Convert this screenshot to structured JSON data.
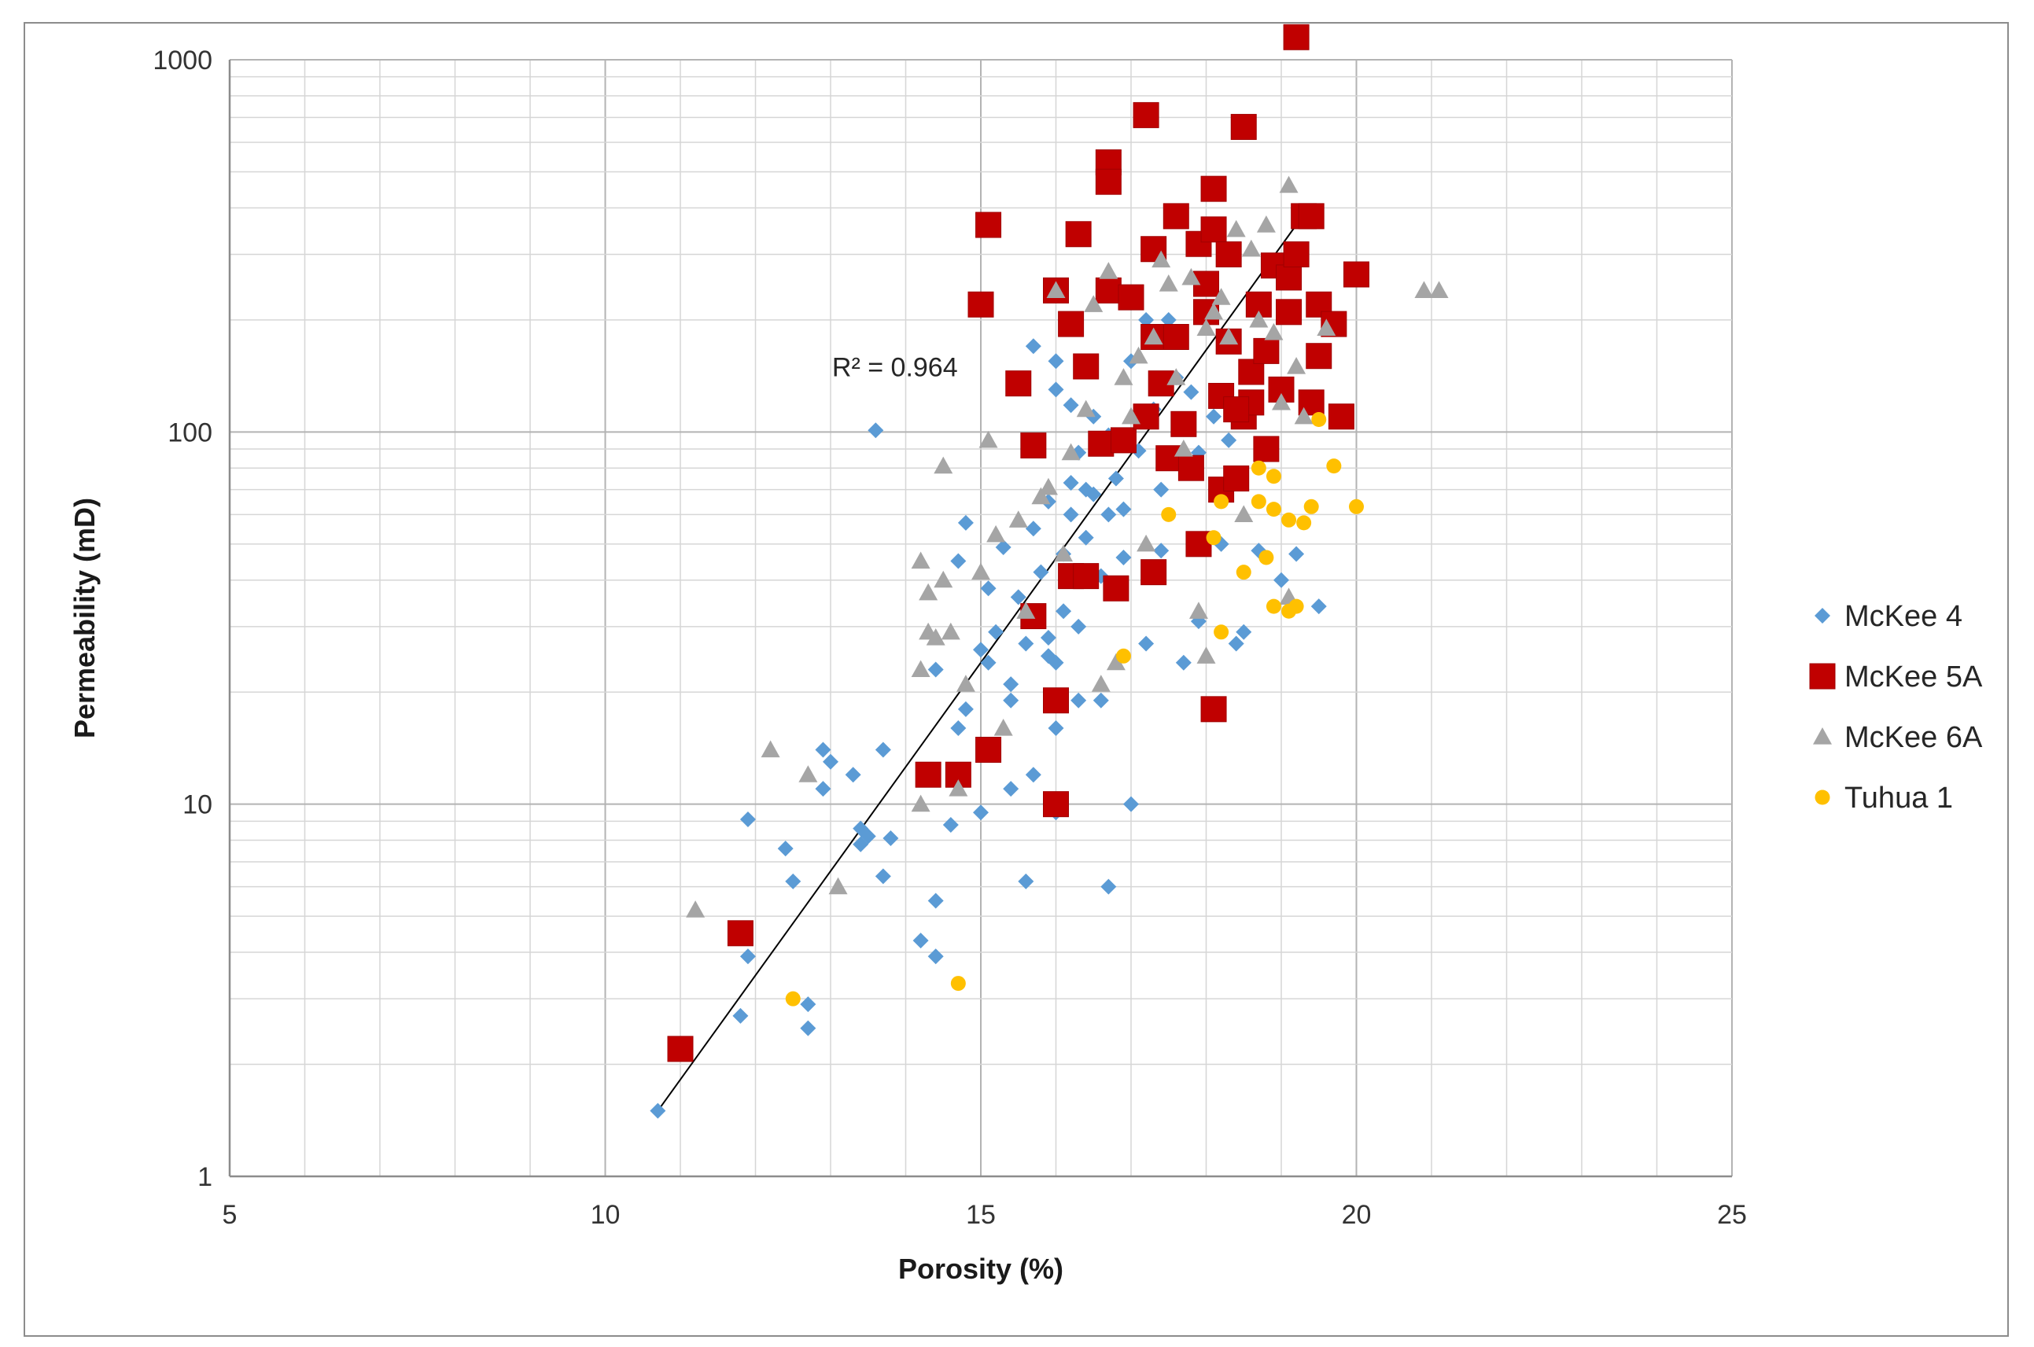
{
  "chart_data": {
    "type": "scatter",
    "xlabel": "Porosity (%)",
    "ylabel": "Permeability (mD)",
    "xlim": [
      5,
      25
    ],
    "ylim": [
      1,
      1000
    ],
    "yscale": "log",
    "x_ticks": [
      "5",
      "10",
      "15",
      "20",
      "25"
    ],
    "y_ticks": [
      "1",
      "10",
      "100",
      "1000"
    ],
    "grid": true,
    "legend_position": "right",
    "annotation": "R² = 0.964",
    "trendline": {
      "x": [
        10.7,
        19.2
      ],
      "y": [
        1.5,
        360
      ]
    },
    "series": [
      {
        "name": "McKee 4",
        "marker": "diamond",
        "color": "#5B9BD5",
        "points": [
          [
            10.7,
            1.5
          ],
          [
            11.9,
            3.9
          ],
          [
            11.8,
            2.7
          ],
          [
            12.7,
            2.9
          ],
          [
            12.7,
            2.5
          ],
          [
            11.9,
            9.1
          ],
          [
            12.4,
            7.6
          ],
          [
            12.5,
            6.2
          ],
          [
            12.9,
            14
          ],
          [
            12.9,
            11
          ],
          [
            13.0,
            13
          ],
          [
            13.3,
            12
          ],
          [
            13.4,
            8.6
          ],
          [
            13.4,
            7.8
          ],
          [
            13.5,
            8.2
          ],
          [
            13.6,
            101
          ],
          [
            13.7,
            14
          ],
          [
            13.7,
            6.4
          ],
          [
            13.8,
            8.1
          ],
          [
            14.2,
            4.3
          ],
          [
            14.4,
            3.9
          ],
          [
            14.4,
            5.5
          ],
          [
            14.4,
            23
          ],
          [
            14.6,
            8.8
          ],
          [
            14.7,
            16
          ],
          [
            14.7,
            45
          ],
          [
            14.8,
            18
          ],
          [
            14.8,
            57
          ],
          [
            15.0,
            26
          ],
          [
            15.0,
            9.5
          ],
          [
            15.1,
            24
          ],
          [
            15.1,
            38
          ],
          [
            15.2,
            29
          ],
          [
            15.3,
            49
          ],
          [
            15.4,
            21
          ],
          [
            15.4,
            19
          ],
          [
            15.4,
            11
          ],
          [
            15.5,
            36
          ],
          [
            15.6,
            27
          ],
          [
            15.6,
            6.2
          ],
          [
            15.7,
            12
          ],
          [
            15.7,
            55
          ],
          [
            15.7,
            170
          ],
          [
            15.8,
            42
          ],
          [
            15.9,
            28
          ],
          [
            15.9,
            65
          ],
          [
            16.0,
            130
          ],
          [
            16.0,
            155
          ],
          [
            16.0,
            24
          ],
          [
            16.0,
            16
          ],
          [
            16.0,
            9.5
          ],
          [
            16.1,
            47
          ],
          [
            16.1,
            33
          ],
          [
            16.2,
            60
          ],
          [
            16.2,
            73
          ],
          [
            16.2,
            118
          ],
          [
            16.3,
            19
          ],
          [
            16.3,
            30
          ],
          [
            16.3,
            88
          ],
          [
            16.4,
            52
          ],
          [
            16.5,
            110
          ],
          [
            16.5,
            68
          ],
          [
            16.6,
            41
          ],
          [
            16.6,
            19
          ],
          [
            16.7,
            6
          ],
          [
            16.7,
            60
          ],
          [
            16.7,
            98
          ],
          [
            16.8,
            75
          ],
          [
            16.9,
            46
          ],
          [
            16.9,
            62
          ],
          [
            17.0,
            10
          ],
          [
            17.0,
            155
          ],
          [
            17.1,
            89
          ],
          [
            17.2,
            27
          ],
          [
            17.2,
            200
          ],
          [
            17.3,
            115
          ],
          [
            17.4,
            70
          ],
          [
            17.4,
            48
          ],
          [
            17.5,
            200
          ],
          [
            17.6,
            140
          ],
          [
            17.7,
            24
          ],
          [
            17.8,
            128
          ],
          [
            17.9,
            31
          ],
          [
            17.9,
            88
          ],
          [
            18.1,
            110
          ],
          [
            18.2,
            50
          ],
          [
            18.3,
            95
          ],
          [
            18.4,
            27
          ],
          [
            18.5,
            29
          ],
          [
            18.7,
            48
          ],
          [
            19.0,
            40
          ],
          [
            19.2,
            47
          ],
          [
            19.5,
            34
          ],
          [
            16.8,
            38
          ],
          [
            15.9,
            25
          ],
          [
            16.4,
            70
          ]
        ]
      },
      {
        "name": "McKee 5A",
        "marker": "square",
        "color": "#C00000",
        "points": [
          [
            11.0,
            2.2
          ],
          [
            11.8,
            4.5
          ],
          [
            14.3,
            12
          ],
          [
            14.7,
            12
          ],
          [
            15.1,
            14
          ],
          [
            15.0,
            220
          ],
          [
            15.1,
            360
          ],
          [
            15.5,
            135
          ],
          [
            15.7,
            92
          ],
          [
            15.7,
            32
          ],
          [
            16.0,
            19
          ],
          [
            16.0,
            10
          ],
          [
            16.0,
            240
          ],
          [
            16.2,
            41
          ],
          [
            16.2,
            195
          ],
          [
            16.3,
            340
          ],
          [
            16.4,
            150
          ],
          [
            16.4,
            41
          ],
          [
            16.6,
            93
          ],
          [
            16.7,
            530
          ],
          [
            16.7,
            470
          ],
          [
            16.7,
            240
          ],
          [
            16.8,
            38
          ],
          [
            16.9,
            95
          ],
          [
            17.0,
            230
          ],
          [
            17.2,
            710
          ],
          [
            17.2,
            110
          ],
          [
            17.3,
            180
          ],
          [
            17.3,
            310
          ],
          [
            17.3,
            42
          ],
          [
            17.4,
            135
          ],
          [
            17.5,
            85
          ],
          [
            17.6,
            380
          ],
          [
            17.6,
            180
          ],
          [
            17.7,
            105
          ],
          [
            17.8,
            80
          ],
          [
            17.9,
            320
          ],
          [
            17.9,
            50
          ],
          [
            18.0,
            250
          ],
          [
            18.0,
            210
          ],
          [
            18.1,
            450
          ],
          [
            18.1,
            350
          ],
          [
            18.1,
            18
          ],
          [
            18.2,
            125
          ],
          [
            18.2,
            70
          ],
          [
            18.3,
            300
          ],
          [
            18.3,
            175
          ],
          [
            18.4,
            75
          ],
          [
            18.5,
            660
          ],
          [
            18.5,
            110
          ],
          [
            18.6,
            145
          ],
          [
            18.7,
            220
          ],
          [
            18.8,
            165
          ],
          [
            18.8,
            90
          ],
          [
            18.9,
            280
          ],
          [
            19.0,
            130
          ],
          [
            19.1,
            260
          ],
          [
            19.1,
            210
          ],
          [
            19.2,
            1150
          ],
          [
            19.2,
            300
          ],
          [
            19.3,
            380
          ],
          [
            19.4,
            380
          ],
          [
            19.4,
            120
          ],
          [
            19.5,
            220
          ],
          [
            19.5,
            160
          ],
          [
            19.7,
            195
          ],
          [
            19.8,
            110
          ],
          [
            20.0,
            265
          ],
          [
            18.6,
            120
          ],
          [
            18.4,
            115
          ]
        ]
      },
      {
        "name": "McKee 6A",
        "marker": "triangle",
        "color": "#A5A5A5",
        "points": [
          [
            11.2,
            5.2
          ],
          [
            12.2,
            14
          ],
          [
            12.7,
            12
          ],
          [
            13.1,
            6
          ],
          [
            14.2,
            45
          ],
          [
            14.2,
            23
          ],
          [
            14.2,
            10
          ],
          [
            14.3,
            29
          ],
          [
            14.3,
            37
          ],
          [
            14.4,
            28
          ],
          [
            14.5,
            81
          ],
          [
            14.5,
            40
          ],
          [
            14.6,
            29
          ],
          [
            14.7,
            11
          ],
          [
            14.8,
            21
          ],
          [
            15.0,
            42
          ],
          [
            15.1,
            95
          ],
          [
            15.2,
            53
          ],
          [
            15.3,
            16
          ],
          [
            15.5,
            58
          ],
          [
            15.6,
            33
          ],
          [
            15.8,
            67
          ],
          [
            15.9,
            71
          ],
          [
            16.0,
            240
          ],
          [
            16.1,
            47
          ],
          [
            16.2,
            88
          ],
          [
            16.4,
            115
          ],
          [
            16.5,
            220
          ],
          [
            16.6,
            21
          ],
          [
            16.7,
            270
          ],
          [
            16.8,
            24
          ],
          [
            16.9,
            140
          ],
          [
            17.0,
            110
          ],
          [
            17.1,
            160
          ],
          [
            17.2,
            50
          ],
          [
            17.3,
            180
          ],
          [
            17.4,
            290
          ],
          [
            17.5,
            250
          ],
          [
            17.6,
            140
          ],
          [
            17.7,
            90
          ],
          [
            17.8,
            260
          ],
          [
            17.9,
            33
          ],
          [
            18.0,
            25
          ],
          [
            18.0,
            190
          ],
          [
            18.1,
            210
          ],
          [
            18.2,
            230
          ],
          [
            18.3,
            180
          ],
          [
            18.4,
            350
          ],
          [
            18.5,
            60
          ],
          [
            18.6,
            310
          ],
          [
            18.7,
            200
          ],
          [
            18.8,
            360
          ],
          [
            18.9,
            185
          ],
          [
            19.0,
            120
          ],
          [
            19.1,
            460
          ],
          [
            19.1,
            36
          ],
          [
            19.2,
            150
          ],
          [
            19.3,
            110
          ],
          [
            19.6,
            190
          ],
          [
            20.9,
            240
          ],
          [
            21.1,
            240
          ]
        ]
      },
      {
        "name": "Tuhua 1",
        "marker": "circle",
        "color": "#FFC000",
        "points": [
          [
            12.5,
            3.0
          ],
          [
            14.7,
            3.3
          ],
          [
            16.9,
            25
          ],
          [
            17.5,
            60
          ],
          [
            18.1,
            52
          ],
          [
            18.2,
            65
          ],
          [
            18.2,
            29
          ],
          [
            18.5,
            42
          ],
          [
            18.7,
            65
          ],
          [
            18.7,
            80
          ],
          [
            18.8,
            46
          ],
          [
            18.9,
            76
          ],
          [
            18.9,
            62
          ],
          [
            18.9,
            34
          ],
          [
            19.1,
            33
          ],
          [
            19.1,
            58
          ],
          [
            19.2,
            34
          ],
          [
            19.3,
            57
          ],
          [
            19.4,
            63
          ],
          [
            19.5,
            108
          ],
          [
            19.7,
            81
          ],
          [
            20.0,
            63
          ]
        ]
      }
    ]
  }
}
